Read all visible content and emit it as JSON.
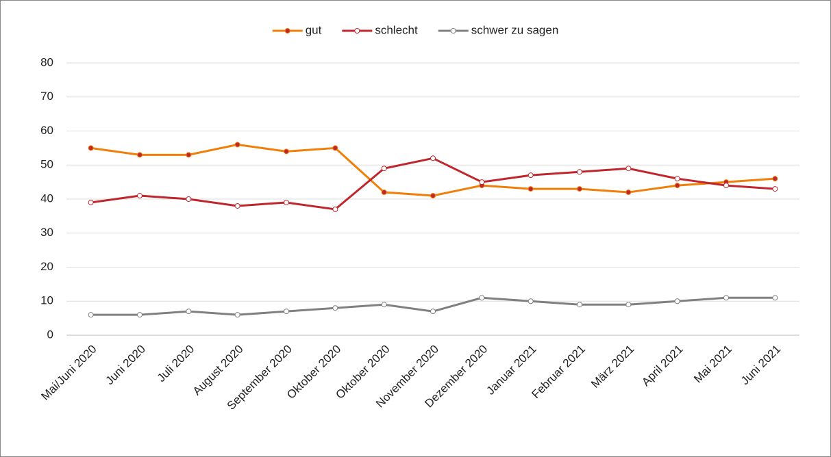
{
  "chart_data": {
    "type": "line",
    "categories": [
      "Mai/Juni 2020",
      "Juni 2020",
      "Juli 2020",
      "August 2020",
      "September 2020",
      "Oktober 2020",
      "Oktober 2020",
      "November 2020",
      "Dezember 2020",
      "Januar 2021",
      "Februar 2021",
      "März 2021",
      "April 2021",
      "Mai 2021",
      "Juni 2021"
    ],
    "series": [
      {
        "name": "gut",
        "color": "#f07f09",
        "marker_fill": "#c0262d",
        "values": [
          55,
          53,
          53,
          56,
          54,
          55,
          42,
          41,
          44,
          43,
          43,
          42,
          44,
          45,
          46
        ]
      },
      {
        "name": "schlecht",
        "color": "#c0262d",
        "marker_fill": "#ffffff",
        "values": [
          39,
          41,
          40,
          38,
          39,
          37,
          49,
          52,
          45,
          47,
          48,
          49,
          46,
          44,
          43
        ]
      },
      {
        "name": "schwer zu sagen",
        "color": "#808080",
        "marker_fill": "#ffffff",
        "values": [
          6,
          6,
          7,
          6,
          7,
          8,
          9,
          7,
          11,
          10,
          9,
          9,
          10,
          11,
          11
        ]
      }
    ],
    "ylim": [
      0,
      80
    ],
    "yticks": [
      0,
      10,
      20,
      30,
      40,
      50,
      60,
      70,
      80
    ],
    "grid": true,
    "legend": "top"
  }
}
